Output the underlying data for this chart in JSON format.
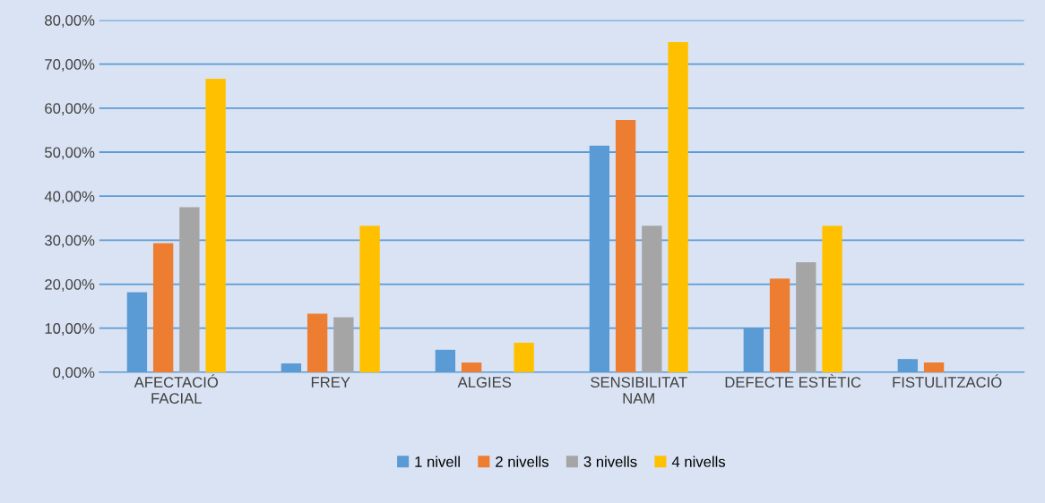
{
  "chart_data": {
    "type": "bar",
    "categories": [
      "AFECTACIÓ\nFACIAL",
      "FREY",
      "ALGIES",
      "SENSIBILITAT\nNAM",
      "DEFECTE ESTÈTIC",
      "FISTULITZACIÓ"
    ],
    "series": [
      {
        "name": "1 nivell",
        "color": "#5b9bd5",
        "values": [
          18.2,
          2.0,
          5.1,
          51.5,
          10.1,
          3.0
        ]
      },
      {
        "name": "2 nivells",
        "color": "#ed7d31",
        "values": [
          29.3,
          13.3,
          2.2,
          57.3,
          21.3,
          2.2
        ]
      },
      {
        "name": "3 nivells",
        "color": "#a5a5a5",
        "values": [
          37.5,
          12.5,
          0,
          33.3,
          25.0,
          0
        ]
      },
      {
        "name": "4 nivells",
        "color": "#ffc000",
        "values": [
          66.7,
          33.3,
          6.7,
          75.0,
          33.3,
          0
        ]
      }
    ],
    "ylim": [
      0,
      80
    ],
    "yticks": [
      {
        "value": 0,
        "label": "0,00%"
      },
      {
        "value": 10,
        "label": "10,00%"
      },
      {
        "value": 20,
        "label": "20,00%"
      },
      {
        "value": 30,
        "label": "30,00%"
      },
      {
        "value": 40,
        "label": "40,00%"
      },
      {
        "value": 50,
        "label": "50,00%"
      },
      {
        "value": 60,
        "label": "60,00%"
      },
      {
        "value": 70,
        "label": "70,00%"
      },
      {
        "value": 80,
        "label": "80,00%"
      }
    ],
    "grid": "y",
    "legend": "bottom"
  }
}
